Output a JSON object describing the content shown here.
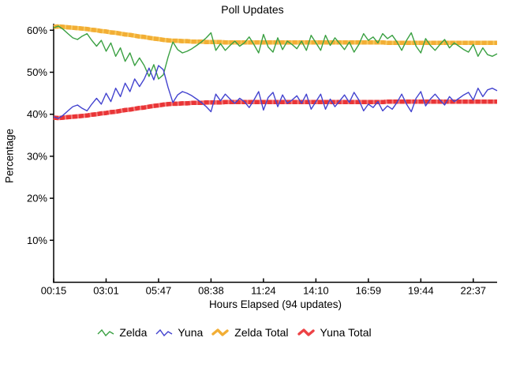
{
  "page": {
    "background": "#ffffff",
    "axis_color": "#000000"
  },
  "icons": {
    "legend": [
      "zelda-line-icon",
      "yuna-line-icon",
      "zelda-total-line-icon",
      "yuna-total-line-icon"
    ]
  },
  "chart_data": {
    "type": "line",
    "title": "Poll Updates",
    "xlabel": "Hours Elapsed (94 updates)",
    "ylabel": "Percentage",
    "n_points": 94,
    "x_tick_labels": [
      "00:15",
      "03:01",
      "05:47",
      "08:38",
      "11:24",
      "14:10",
      "16:59",
      "19:44",
      "22:37"
    ],
    "x_tick_every_n_points": 11,
    "y_ticks": [
      10,
      20,
      30,
      40,
      50,
      60
    ],
    "y_tick_suffix": "%",
    "ylim": [
      0,
      63
    ],
    "grid": false,
    "legend_position": "bottom",
    "series": [
      {
        "name": "Zelda",
        "color": "#3aa042",
        "thick": false,
        "values": [
          60.6,
          61.0,
          60.2,
          59.2,
          58.2,
          57.8,
          58.6,
          59.2,
          57.6,
          56.2,
          57.6,
          55.0,
          57.0,
          53.8,
          55.8,
          52.6,
          54.6,
          51.6,
          53.4,
          51.6,
          49.0,
          51.8,
          48.4,
          49.4,
          53.6,
          57.2,
          55.4,
          54.6,
          55.0,
          55.6,
          56.4,
          57.2,
          58.2,
          59.4,
          55.2,
          56.8,
          55.2,
          56.4,
          57.4,
          56.2,
          57.0,
          58.4,
          56.6,
          54.6,
          59.0,
          56.0,
          54.8,
          58.2,
          55.4,
          57.4,
          56.6,
          55.6,
          57.4,
          55.2,
          58.8,
          57.0,
          55.2,
          58.8,
          56.4,
          58.2,
          56.8,
          55.4,
          57.2,
          54.8,
          56.6,
          59.2,
          57.6,
          58.4,
          57.0,
          59.2,
          58.0,
          58.8,
          57.2,
          55.2,
          57.6,
          59.4,
          56.2,
          54.6,
          58.0,
          56.4,
          55.2,
          56.6,
          57.8,
          55.8,
          57.0,
          56.2,
          55.4,
          54.8,
          56.6,
          53.8,
          55.8,
          54.2,
          53.8,
          54.4
        ]
      },
      {
        "name": "Yuna",
        "color": "#4343cf",
        "thick": false,
        "values": [
          39.4,
          39.0,
          39.8,
          40.8,
          41.8,
          42.2,
          41.4,
          40.8,
          42.4,
          43.8,
          42.4,
          45.0,
          43.0,
          46.2,
          44.2,
          47.4,
          45.4,
          48.4,
          46.6,
          48.4,
          51.0,
          48.2,
          51.6,
          50.6,
          46.4,
          42.8,
          44.6,
          45.4,
          45.0,
          44.4,
          43.6,
          42.8,
          41.8,
          40.6,
          44.8,
          43.2,
          44.8,
          43.6,
          42.6,
          43.8,
          43.0,
          41.6,
          43.4,
          45.4,
          41.0,
          44.0,
          45.2,
          41.8,
          44.6,
          42.6,
          43.4,
          44.4,
          42.6,
          44.8,
          41.2,
          43.0,
          44.8,
          41.2,
          43.6,
          41.8,
          43.2,
          44.6,
          42.8,
          45.2,
          43.4,
          40.8,
          42.4,
          41.6,
          43.0,
          40.8,
          42.0,
          41.2,
          42.8,
          44.8,
          42.4,
          40.6,
          43.8,
          45.4,
          42.0,
          43.6,
          44.8,
          43.4,
          42.2,
          44.2,
          43.0,
          43.8,
          44.6,
          45.2,
          43.4,
          46.2,
          44.2,
          45.8,
          46.2,
          45.6
        ]
      },
      {
        "name": "Zelda Total",
        "color": "#f2ae35",
        "band_base": "#f8c95f",
        "band_dash": "#f2ae35",
        "thick": true,
        "values": [
          60.8,
          60.9,
          60.8,
          60.7,
          60.6,
          60.5,
          60.4,
          60.3,
          60.1,
          60.0,
          59.8,
          59.7,
          59.5,
          59.4,
          59.2,
          59.0,
          58.9,
          58.7,
          58.5,
          58.4,
          58.2,
          58.0,
          57.9,
          57.7,
          57.6,
          57.5,
          57.5,
          57.4,
          57.4,
          57.3,
          57.3,
          57.3,
          57.2,
          57.2,
          57.2,
          57.2,
          57.1,
          57.1,
          57.1,
          57.1,
          57.1,
          57.1,
          57.1,
          57.1,
          57.1,
          57.1,
          57.1,
          57.1,
          57.1,
          57.1,
          57.1,
          57.1,
          57.1,
          57.1,
          57.1,
          57.1,
          57.1,
          57.1,
          57.1,
          57.1,
          57.1,
          57.1,
          57.1,
          57.1,
          57.1,
          57.1,
          57.1,
          57.1,
          57.1,
          57.1,
          57.0,
          57.0,
          57.0,
          57.0,
          57.0,
          57.0,
          57.0,
          57.0,
          57.0,
          57.0,
          57.0,
          57.0,
          57.0,
          57.0,
          57.0,
          57.0,
          57.0,
          57.0,
          57.0,
          57.0,
          57.0,
          57.0,
          57.0,
          57.0
        ]
      },
      {
        "name": "Yuna Total",
        "color": "#ed4245",
        "band_base": "#f47d7c",
        "band_dash": "#e93537",
        "thick": true,
        "values": [
          39.2,
          39.1,
          39.2,
          39.3,
          39.4,
          39.5,
          39.6,
          39.7,
          39.9,
          40.0,
          40.2,
          40.3,
          40.5,
          40.6,
          40.8,
          41.0,
          41.1,
          41.3,
          41.5,
          41.6,
          41.8,
          42.0,
          42.1,
          42.3,
          42.4,
          42.5,
          42.5,
          42.6,
          42.6,
          42.7,
          42.7,
          42.7,
          42.8,
          42.8,
          42.8,
          42.8,
          42.9,
          42.9,
          42.9,
          42.9,
          42.9,
          42.9,
          42.9,
          42.9,
          42.9,
          42.9,
          42.9,
          42.9,
          42.9,
          42.9,
          42.9,
          42.9,
          42.9,
          42.9,
          42.9,
          42.9,
          42.9,
          42.9,
          42.9,
          42.9,
          42.9,
          42.9,
          42.9,
          42.9,
          42.9,
          42.9,
          42.9,
          42.9,
          42.9,
          42.9,
          43.0,
          43.0,
          43.0,
          43.0,
          43.0,
          43.0,
          43.0,
          43.0,
          43.0,
          43.0,
          43.0,
          43.0,
          43.0,
          43.0,
          43.0,
          43.0,
          43.0,
          43.0,
          43.0,
          43.0,
          43.0,
          43.0,
          43.0,
          43.0
        ]
      }
    ]
  }
}
